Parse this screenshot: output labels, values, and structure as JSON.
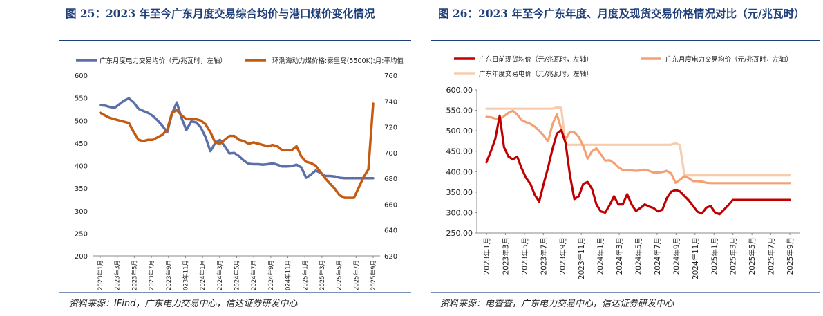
{
  "left": {
    "title": "图 25：2023 年至今广东月度交易综合均价与港口煤价变化情况",
    "source": "资料来源：IFind，广东电力交易中心，信达证券研发中心",
    "chart_data": {
      "type": "line",
      "x_labels": [
        "2023年1月",
        "2023年3月",
        "2023年5月",
        "2023年7月",
        "2023年9月",
        "2023年11月",
        "2024年1月",
        "2024年3月",
        "2024年5月",
        "2024年7月",
        "2024年9月",
        "2024年11月",
        "2025年1月",
        "2025年3月",
        "2025年5月",
        "2025年7月",
        "2025年9月"
      ],
      "x_points": 58,
      "ylim": [
        200,
        600
      ],
      "y_ticks": [
        200,
        250,
        300,
        350,
        400,
        450,
        500,
        550,
        600
      ],
      "y2lim": [
        620,
        760
      ],
      "y2_ticks": [
        620,
        640,
        660,
        680,
        700,
        720,
        740,
        760
      ],
      "series": [
        {
          "name": "广东月度电力交易均价（元/兆瓦时，左轴）",
          "axis": "left",
          "color": "#5b6fa8",
          "x": [
            0,
            1,
            2,
            3,
            4,
            5,
            6,
            7,
            8,
            9,
            10,
            11,
            12,
            13,
            14,
            15,
            16,
            17,
            18,
            19,
            20,
            21,
            22,
            23,
            24,
            25,
            26,
            27,
            28,
            29,
            30,
            31,
            32,
            33,
            34,
            35,
            36,
            37,
            38,
            39,
            40,
            41,
            42,
            43,
            44,
            45,
            46,
            47,
            48,
            49,
            50,
            51,
            52,
            53,
            54,
            55,
            56,
            57
          ],
          "values": [
            534,
            533,
            530,
            528,
            536,
            544,
            549,
            540,
            526,
            521,
            517,
            510,
            500,
            488,
            474,
            515,
            540,
            505,
            479,
            498,
            496,
            485,
            463,
            432,
            450,
            457,
            443,
            427,
            428,
            421,
            411,
            404,
            403,
            403,
            402,
            403,
            405,
            402,
            398,
            398,
            399,
            402,
            396,
            373,
            380,
            389,
            384,
            377,
            377,
            376,
            373,
            372,
            372,
            372,
            372,
            372,
            372,
            372
          ]
        },
        {
          "name": "环渤海动力煤价格:秦皇岛(5500K):月:平均值",
          "axis": "right",
          "color": "#c55a11",
          "x": [
            0,
            1,
            2,
            3,
            4,
            5,
            6,
            7,
            8,
            9,
            10,
            11,
            12,
            13,
            14,
            15,
            16,
            17,
            18,
            19,
            20,
            21,
            22,
            23,
            24,
            25,
            26,
            27,
            28,
            29,
            30,
            31,
            32,
            33,
            34,
            35,
            36,
            37,
            38,
            39,
            40,
            41,
            42,
            43,
            44,
            45,
            46,
            47,
            48,
            49,
            50,
            51,
            52,
            53,
            54,
            55,
            56,
            57
          ],
          "values": [
            731,
            729,
            727,
            726,
            725,
            724,
            723,
            716,
            710,
            709,
            710,
            710,
            712,
            714,
            718,
            731,
            733,
            729,
            726,
            726,
            726,
            725,
            722,
            716,
            708,
            707,
            710,
            713,
            713,
            710,
            709,
            707,
            708,
            707,
            706,
            705,
            706,
            705,
            702,
            702,
            702,
            705,
            697,
            693,
            692,
            690,
            685,
            680,
            676,
            672,
            667,
            665,
            665,
            665,
            673,
            681,
            687,
            738
          ]
        }
      ]
    }
  },
  "right": {
    "title": "图 26：2023 年至今广东年度、月度及现货交易价格情况对比（元/兆瓦时）",
    "source": "资料来源：电查查，广东电力交易中心，信达证券研发中心",
    "chart_data": {
      "type": "line",
      "x_labels": [
        "2023年1月",
        "2023年3月",
        "2023年5月",
        "2023年7月",
        "2023年9月",
        "2023年11月",
        "2024年1月",
        "2024年3月",
        "2024年5月",
        "2024年7月",
        "2024年9月",
        "2024年11月",
        "2025年1月",
        "2025年3月",
        "2025年5月",
        "2025年7月",
        "2025年9月"
      ],
      "x_points": 70,
      "ylim": [
        250,
        600
      ],
      "y_ticks": [
        "250.00",
        "300.00",
        "350.00",
        "400.00",
        "450.00",
        "500.00",
        "550.00",
        "600.00"
      ],
      "series": [
        {
          "name": "广东日前现货均价（元/兆瓦时，左轴）",
          "color": "#c00000",
          "x": [
            0,
            1,
            2,
            3,
            4,
            5,
            6,
            7,
            8,
            9,
            10,
            11,
            12,
            13,
            14,
            15,
            16,
            17,
            18,
            19,
            20,
            21,
            22,
            23,
            24,
            25,
            26,
            27,
            28,
            29,
            30,
            31,
            32,
            33,
            34,
            35,
            36,
            37,
            38,
            39,
            40,
            41,
            42,
            43,
            44,
            45,
            46,
            47,
            48,
            49,
            50,
            51,
            52,
            53,
            54,
            55,
            56,
            57,
            58,
            59,
            60,
            61,
            62,
            63,
            64,
            65,
            66,
            67,
            68,
            69
          ],
          "values": [
            423,
            450,
            480,
            537,
            460,
            437,
            430,
            437,
            408,
            385,
            370,
            343,
            327,
            370,
            410,
            455,
            493,
            502,
            470,
            390,
            333,
            340,
            370,
            375,
            358,
            320,
            303,
            300,
            318,
            340,
            320,
            320,
            345,
            320,
            304,
            311,
            320,
            315,
            311,
            303,
            307,
            335,
            351,
            355,
            352,
            341,
            330,
            316,
            302,
            298,
            312,
            316,
            300,
            296,
            307,
            318,
            331,
            331,
            331,
            331,
            331,
            331,
            331,
            331,
            331,
            331,
            331,
            331,
            331,
            331
          ]
        },
        {
          "name": "广东月度电力交易均价（元/兆瓦时，左轴）",
          "color": "#f4a072",
          "x": [
            0,
            1,
            2,
            3,
            4,
            5,
            6,
            7,
            8,
            9,
            10,
            11,
            12,
            13,
            14,
            15,
            16,
            17,
            18,
            19,
            20,
            21,
            22,
            23,
            24,
            25,
            26,
            27,
            28,
            29,
            30,
            31,
            32,
            33,
            34,
            35,
            36,
            37,
            38,
            39,
            40,
            41,
            42,
            43,
            44,
            45,
            46,
            47,
            48,
            49,
            50,
            51,
            52,
            53,
            54,
            55,
            56,
            57,
            58,
            59,
            60,
            61,
            62,
            63,
            64,
            65,
            66,
            67,
            68,
            69
          ],
          "values": [
            534,
            533,
            530,
            528,
            536,
            544,
            549,
            540,
            526,
            521,
            517,
            510,
            500,
            488,
            474,
            515,
            540,
            505,
            479,
            498,
            496,
            485,
            463,
            432,
            450,
            457,
            443,
            427,
            428,
            421,
            411,
            404,
            403,
            403,
            402,
            403,
            405,
            402,
            398,
            398,
            399,
            402,
            396,
            373,
            380,
            389,
            384,
            377,
            377,
            376,
            373,
            372,
            372,
            372,
            372,
            372,
            372,
            372,
            372,
            372,
            372,
            372,
            372,
            372,
            372,
            372,
            372,
            372,
            372,
            372
          ]
        },
        {
          "name": "广东年度交易电价（元/兆瓦时，左轴）",
          "color": "#f8cbad",
          "x": [
            0,
            15,
            16,
            17,
            18,
            42,
            43,
            44,
            45,
            46,
            69
          ],
          "values": [
            554,
            554,
            557,
            556,
            466,
            466,
            470,
            465,
            393,
            391,
            391
          ]
        }
      ]
    }
  }
}
